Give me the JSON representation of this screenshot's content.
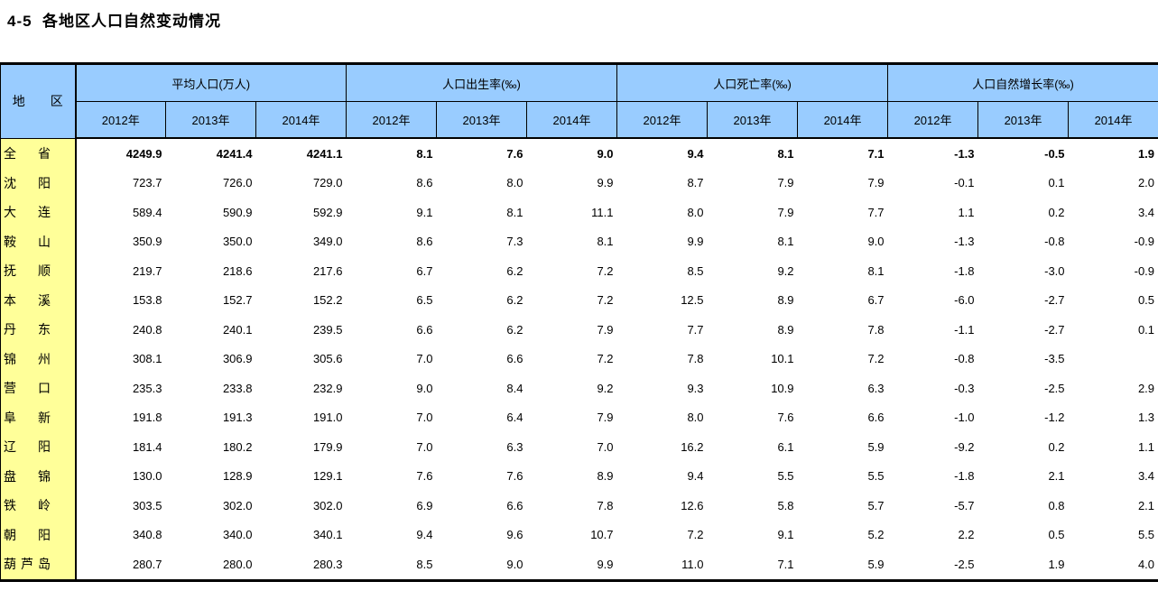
{
  "page": {
    "title": "4-5  各地区人口自然变动情况"
  },
  "table": {
    "region_header": "地区",
    "groups": [
      "平均人口(万人)",
      "人口出生率(‰)",
      "人口死亡率(‰)",
      "人口自然增长率(‰)"
    ],
    "years": [
      "2012年",
      "2013年",
      "2014年"
    ],
    "colors": {
      "header_bg": "#99CCFF",
      "region_bg": "#FFFF99",
      "border": "#000000"
    },
    "rows": [
      {
        "region": "全省",
        "bold": true,
        "values": [
          "4249.9",
          "4241.4",
          "4241.1",
          "8.1",
          "7.6",
          "9.0",
          "9.4",
          "8.1",
          "7.1",
          "-1.3",
          "-0.5",
          "1.9"
        ]
      },
      {
        "region": "沈阳",
        "bold": false,
        "values": [
          "723.7",
          "726.0",
          "729.0",
          "8.6",
          "8.0",
          "9.9",
          "8.7",
          "7.9",
          "7.9",
          "-0.1",
          "0.1",
          "2.0"
        ]
      },
      {
        "region": "大连",
        "bold": false,
        "values": [
          "589.4",
          "590.9",
          "592.9",
          "9.1",
          "8.1",
          "11.1",
          "8.0",
          "7.9",
          "7.7",
          "1.1",
          "0.2",
          "3.4"
        ]
      },
      {
        "region": "鞍山",
        "bold": false,
        "values": [
          "350.9",
          "350.0",
          "349.0",
          "8.6",
          "7.3",
          "8.1",
          "9.9",
          "8.1",
          "9.0",
          "-1.3",
          "-0.8",
          "-0.9"
        ]
      },
      {
        "region": "抚顺",
        "bold": false,
        "values": [
          "219.7",
          "218.6",
          "217.6",
          "6.7",
          "6.2",
          "7.2",
          "8.5",
          "9.2",
          "8.1",
          "-1.8",
          "-3.0",
          "-0.9"
        ]
      },
      {
        "region": "本溪",
        "bold": false,
        "values": [
          "153.8",
          "152.7",
          "152.2",
          "6.5",
          "6.2",
          "7.2",
          "12.5",
          "8.9",
          "6.7",
          "-6.0",
          "-2.7",
          "0.5"
        ]
      },
      {
        "region": "丹东",
        "bold": false,
        "values": [
          "240.8",
          "240.1",
          "239.5",
          "6.6",
          "6.2",
          "7.9",
          "7.7",
          "8.9",
          "7.8",
          "-1.1",
          "-2.7",
          "0.1"
        ]
      },
      {
        "region": "锦州",
        "bold": false,
        "values": [
          "308.1",
          "306.9",
          "305.6",
          "7.0",
          "6.6",
          "7.2",
          "7.8",
          "10.1",
          "7.2",
          "-0.8",
          "-3.5",
          ""
        ]
      },
      {
        "region": "营口",
        "bold": false,
        "values": [
          "235.3",
          "233.8",
          "232.9",
          "9.0",
          "8.4",
          "9.2",
          "9.3",
          "10.9",
          "6.3",
          "-0.3",
          "-2.5",
          "2.9"
        ]
      },
      {
        "region": "阜新",
        "bold": false,
        "values": [
          "191.8",
          "191.3",
          "191.0",
          "7.0",
          "6.4",
          "7.9",
          "8.0",
          "7.6",
          "6.6",
          "-1.0",
          "-1.2",
          "1.3"
        ]
      },
      {
        "region": "辽阳",
        "bold": false,
        "values": [
          "181.4",
          "180.2",
          "179.9",
          "7.0",
          "6.3",
          "7.0",
          "16.2",
          "6.1",
          "5.9",
          "-9.2",
          "0.2",
          "1.1"
        ]
      },
      {
        "region": "盘锦",
        "bold": false,
        "values": [
          "130.0",
          "128.9",
          "129.1",
          "7.6",
          "7.6",
          "8.9",
          "9.4",
          "5.5",
          "5.5",
          "-1.8",
          "2.1",
          "3.4"
        ]
      },
      {
        "region": "铁岭",
        "bold": false,
        "values": [
          "303.5",
          "302.0",
          "302.0",
          "6.9",
          "6.6",
          "7.8",
          "12.6",
          "5.8",
          "5.7",
          "-5.7",
          "0.8",
          "2.1"
        ]
      },
      {
        "region": "朝阳",
        "bold": false,
        "values": [
          "340.8",
          "340.0",
          "340.1",
          "9.4",
          "9.6",
          "10.7",
          "7.2",
          "9.1",
          "5.2",
          "2.2",
          "0.5",
          "5.5"
        ]
      },
      {
        "region": "葫芦岛",
        "bold": false,
        "values": [
          "280.7",
          "280.0",
          "280.3",
          "8.5",
          "9.0",
          "9.9",
          "11.0",
          "7.1",
          "5.9",
          "-2.5",
          "1.9",
          "4.0"
        ]
      }
    ]
  }
}
